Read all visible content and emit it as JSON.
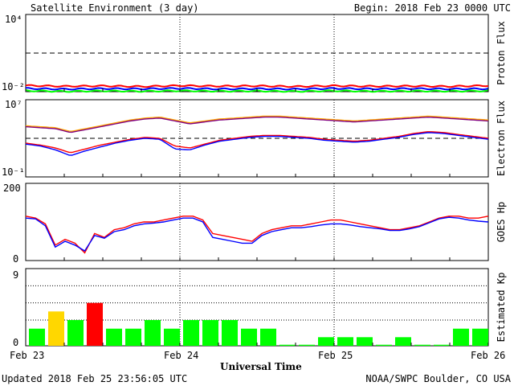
{
  "header": {
    "title": "Satellite Environment (3 day)",
    "begin": "Begin:  2018 Feb 23 0000 UTC"
  },
  "footer": {
    "updated": "Updated 2018 Feb 25 23:56:05 UTC",
    "credit": "NOAA/SWPC Boulder, CO USA"
  },
  "colors": {
    "red": "#ff0000",
    "blue": "#0000ff",
    "green": "#00ff00",
    "orange": "#ffa500",
    "purple": "#800080",
    "yellow": "#ffd700"
  },
  "chart_data": [
    {
      "type": "line",
      "panel": "proton",
      "ylabel": "Proton Flux",
      "ylim_exp": [
        -2,
        4
      ],
      "ytick_labels": [
        "10⁴",
        "10⁻²"
      ],
      "threshold_exp": 1,
      "series": [
        {
          "color": "red",
          "values_log10": [
            -1.52,
            -1.58,
            -1.55,
            -1.6,
            -1.53,
            -1.57,
            -1.55,
            -1.6,
            -1.54,
            -1.58,
            -1.56,
            -1.59,
            -1.53
          ]
        },
        {
          "color": "blue",
          "values_log10": [
            -1.75,
            -1.8,
            -1.76,
            -1.78,
            -1.74,
            -1.79,
            -1.77,
            -1.8,
            -1.75,
            -1.78,
            -1.76,
            -1.79,
            -1.77
          ]
        },
        {
          "color": "green",
          "values_log10": [
            -1.92,
            -1.98,
            -1.94,
            -1.97,
            -1.93,
            -1.96,
            -1.95,
            -1.98,
            -1.93,
            -1.97,
            -1.95,
            -1.96,
            -1.94
          ]
        }
      ]
    },
    {
      "type": "line",
      "panel": "electron",
      "ylabel": "Electron Flux",
      "ylim_exp": [
        -1,
        7
      ],
      "ytick_labels": [
        "10⁷",
        "10⁻¹"
      ],
      "threshold_exp": 3,
      "series": [
        {
          "color": "orange",
          "values_log10": [
            4.3,
            4.2,
            4.1,
            3.7,
            4.0,
            4.3,
            4.6,
            4.9,
            5.1,
            5.2,
            4.9,
            4.6,
            4.8,
            5.0,
            5.1,
            5.2,
            5.3,
            5.3,
            5.2,
            5.1,
            5.0,
            4.9,
            4.8,
            4.9,
            5.0,
            5.1,
            5.2,
            5.3,
            5.2,
            5.1,
            5.0,
            4.9
          ]
        },
        {
          "color": "purple",
          "values_log10": [
            4.2,
            4.1,
            4.0,
            3.6,
            3.9,
            4.2,
            4.5,
            4.8,
            5.0,
            5.1,
            4.8,
            4.5,
            4.7,
            4.9,
            5.0,
            5.1,
            5.2,
            5.2,
            5.1,
            5.0,
            4.9,
            4.8,
            4.7,
            4.8,
            4.9,
            5.0,
            5.1,
            5.2,
            5.1,
            5.0,
            4.9,
            4.8
          ]
        },
        {
          "color": "red",
          "values_log10": [
            2.5,
            2.3,
            2.0,
            1.5,
            1.9,
            2.3,
            2.6,
            2.9,
            3.1,
            3.0,
            2.2,
            2.0,
            2.4,
            2.8,
            3.0,
            3.2,
            3.3,
            3.3,
            3.2,
            3.1,
            2.9,
            2.8,
            2.7,
            2.8,
            3.0,
            3.2,
            3.5,
            3.7,
            3.6,
            3.4,
            3.2,
            3.0
          ]
        },
        {
          "color": "blue",
          "values_log10": [
            2.4,
            2.2,
            1.8,
            1.2,
            1.7,
            2.1,
            2.5,
            2.8,
            3.0,
            2.9,
            1.9,
            1.8,
            2.3,
            2.7,
            2.9,
            3.1,
            3.2,
            3.2,
            3.1,
            3.0,
            2.8,
            2.7,
            2.6,
            2.7,
            2.9,
            3.1,
            3.4,
            3.6,
            3.5,
            3.3,
            3.1,
            2.9
          ]
        }
      ]
    },
    {
      "type": "line",
      "panel": "goes",
      "ylabel": "GOES Hp",
      "ylim": [
        0,
        200
      ],
      "ytick_labels": [
        "200",
        "0"
      ],
      "series": [
        {
          "color": "red",
          "values": [
            115,
            110,
            95,
            40,
            55,
            45,
            20,
            70,
            60,
            80,
            85,
            95,
            100,
            100,
            105,
            110,
            115,
            115,
            105,
            70,
            65,
            60,
            55,
            50,
            70,
            80,
            85,
            90,
            90,
            95,
            100,
            105,
            105,
            100,
            95,
            90,
            85,
            80,
            80,
            85,
            90,
            100,
            110,
            115,
            115,
            110,
            110,
            115
          ]
        },
        {
          "color": "blue",
          "values": [
            110,
            108,
            90,
            35,
            50,
            40,
            25,
            65,
            58,
            75,
            80,
            90,
            95,
            97,
            100,
            105,
            110,
            110,
            100,
            60,
            55,
            50,
            45,
            45,
            65,
            75,
            80,
            85,
            85,
            88,
            92,
            95,
            95,
            92,
            88,
            85,
            82,
            78,
            78,
            82,
            88,
            98,
            108,
            112,
            110,
            105,
            102,
            100
          ]
        }
      ]
    },
    {
      "type": "bar",
      "panel": "kp",
      "ylabel": "Estimated Kp",
      "ylim": [
        0,
        9
      ],
      "ytick_labels": [
        "9",
        "0"
      ],
      "values": [
        2,
        4,
        3,
        5,
        2,
        2,
        3,
        2,
        3,
        3,
        3,
        2,
        2,
        0,
        0,
        1,
        1,
        1,
        0,
        1,
        0,
        0,
        2,
        2
      ],
      "colors": [
        "green",
        "yellow",
        "green",
        "red",
        "green",
        "green",
        "green",
        "green",
        "green",
        "green",
        "green",
        "green",
        "green",
        "green",
        "green",
        "green",
        "green",
        "green",
        "green",
        "green",
        "green",
        "green",
        "green",
        "green"
      ]
    }
  ],
  "xaxis": {
    "tick_labels": [
      "Feb 23",
      "Feb 24",
      "Feb 25",
      "Feb 26"
    ],
    "label": "Universal Time"
  }
}
